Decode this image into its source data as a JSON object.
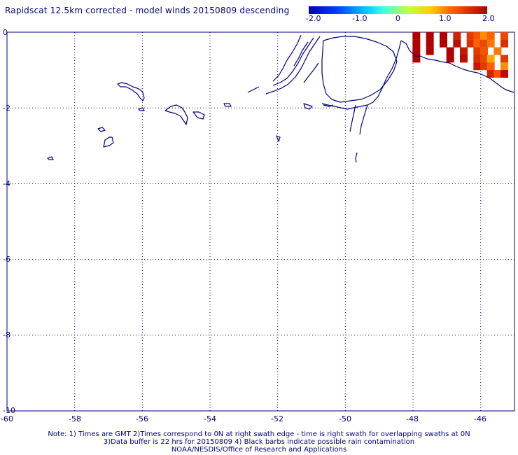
{
  "title": "Rapidscat 12.5km corrected - model winds 20150809 descending",
  "colorbar": {
    "labels": [
      "-2.0",
      "-1.0",
      "0",
      "1.0",
      "2.0"
    ],
    "range": [
      -2.0,
      2.0
    ]
  },
  "axes": {
    "y_ticks": [
      "0",
      "-2",
      "-4",
      "-6",
      "-8",
      "-10"
    ],
    "x_ticks": [
      "-60",
      "-58",
      "-56",
      "-54",
      "-52",
      "-50",
      "-48",
      "-46"
    ],
    "lon_range": [
      -60,
      -45
    ],
    "lat_range": [
      -10,
      0
    ],
    "grid": true
  },
  "notes": [
    "Note: 1) Times are GMT 2)Times correspond to 0N at right swath edge - time is right swath for overlapping swaths at 0N",
    "3)Data buffer is 22 hrs for 20150809 4) Black barbs indicate possible rain contamination",
    "NOAA/NESDIS/Office of Research and Applications"
  ],
  "colors": {
    "coast": "#00007a",
    "grid": "#00007a",
    "label": "#00007a"
  },
  "chart_data": {
    "type": "heatmap",
    "title": "Rapidscat 12.5km corrected - model winds 20150809 descending",
    "xlabel": "",
    "ylabel": "",
    "xlim": [
      -60,
      -45
    ],
    "ylim": [
      -10,
      0
    ],
    "color_range": [
      -2.0,
      2.0
    ],
    "cells": [
      {
        "lon": -47.9,
        "lat": -0.1,
        "value": 2.0
      },
      {
        "lon": -47.5,
        "lat": -0.1,
        "value": 2.0
      },
      {
        "lon": -47.1,
        "lat": -0.1,
        "value": 2.0
      },
      {
        "lon": -46.7,
        "lat": -0.1,
        "value": 1.7
      },
      {
        "lon": -46.3,
        "lat": -0.1,
        "value": 1.5
      },
      {
        "lon": -46.1,
        "lat": -0.1,
        "value": 1.3
      },
      {
        "lon": -45.9,
        "lat": -0.1,
        "value": 1.0
      },
      {
        "lon": -45.7,
        "lat": -0.1,
        "value": 1.2
      },
      {
        "lon": -45.3,
        "lat": -0.1,
        "value": 1.4
      },
      {
        "lon": -47.9,
        "lat": -0.3,
        "value": 2.0
      },
      {
        "lon": -47.5,
        "lat": -0.3,
        "value": 2.0
      },
      {
        "lon": -47.1,
        "lat": -0.3,
        "value": 2.0
      },
      {
        "lon": -46.7,
        "lat": -0.3,
        "value": 1.9
      },
      {
        "lon": -46.3,
        "lat": -0.3,
        "value": 1.6
      },
      {
        "lon": -46.1,
        "lat": -0.3,
        "value": 1.2
      },
      {
        "lon": -45.9,
        "lat": -0.3,
        "value": 1.4
      },
      {
        "lon": -45.7,
        "lat": -0.3,
        "value": 1.1
      },
      {
        "lon": -45.3,
        "lat": -0.3,
        "value": 1.6
      },
      {
        "lon": -47.9,
        "lat": -0.5,
        "value": 2.0
      },
      {
        "lon": -47.5,
        "lat": -0.5,
        "value": 2.0
      },
      {
        "lon": -46.9,
        "lat": -0.5,
        "value": 2.0
      },
      {
        "lon": -46.5,
        "lat": -0.5,
        "value": 1.8
      },
      {
        "lon": -46.1,
        "lat": -0.5,
        "value": 1.5
      },
      {
        "lon": -45.9,
        "lat": -0.5,
        "value": 1.3
      },
      {
        "lon": -45.5,
        "lat": -0.5,
        "value": 1.1
      },
      {
        "lon": -47.9,
        "lat": -0.7,
        "value": 2.0
      },
      {
        "lon": -46.9,
        "lat": -0.7,
        "value": 2.0
      },
      {
        "lon": -46.5,
        "lat": -0.7,
        "value": 1.9
      },
      {
        "lon": -46.1,
        "lat": -0.7,
        "value": 1.6
      },
      {
        "lon": -45.9,
        "lat": -0.7,
        "value": 1.4
      },
      {
        "lon": -45.7,
        "lat": -0.7,
        "value": 0.9
      },
      {
        "lon": -45.3,
        "lat": -0.7,
        "value": 1.5
      },
      {
        "lon": -46.1,
        "lat": -0.9,
        "value": 1.8
      },
      {
        "lon": -45.9,
        "lat": -0.9,
        "value": 1.5
      },
      {
        "lon": -45.7,
        "lat": -0.9,
        "value": 1.2
      },
      {
        "lon": -45.3,
        "lat": -0.9,
        "value": 1.0
      },
      {
        "lon": -45.7,
        "lat": -1.1,
        "value": 1.7
      },
      {
        "lon": -45.5,
        "lat": -1.1,
        "value": 1.3
      },
      {
        "lon": -45.3,
        "lat": -1.1,
        "value": 1.9
      }
    ]
  }
}
